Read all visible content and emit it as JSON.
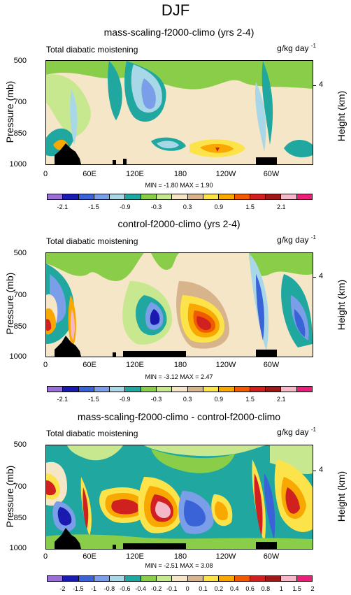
{
  "figure": {
    "title": "DJF"
  },
  "panels": [
    {
      "title": "mass-scaling-f2000-climo (yrs 2-4)",
      "left_text": "Total diabatic moistening",
      "units": "g/kg day",
      "units_exp": "-1",
      "ylabel": "Pressure (mb)",
      "y2label": "Height (km)",
      "yticks": [
        "500",
        "700",
        "850",
        "1000"
      ],
      "y2tick": "4",
      "xticks": [
        "0",
        "60E",
        "120E",
        "180",
        "120W",
        "60W"
      ],
      "minmax": "MIN = -1.80  MAX =  1.90",
      "cb_labels": [
        "-2.1",
        "-1.5",
        "-0.9",
        "-0.3",
        "0.3",
        "0.9",
        "1.5",
        "2.1"
      ]
    },
    {
      "title": "control-f2000-climo (yrs 2-4)",
      "left_text": "Total diabatic moistening",
      "units": "g/kg day",
      "units_exp": "-1",
      "ylabel": "Pressure (mb)",
      "y2label": "Height (km)",
      "yticks": [
        "500",
        "700",
        "850",
        "1000"
      ],
      "y2tick": "4",
      "xticks": [
        "0",
        "60E",
        "120E",
        "180",
        "120W",
        "60W"
      ],
      "minmax": "MIN = -3.12  MAX =  2.47",
      "cb_labels": [
        "-2.1",
        "-1.5",
        "-0.9",
        "-0.3",
        "0.3",
        "0.9",
        "1.5",
        "2.1"
      ]
    },
    {
      "title": "mass-scaling-f2000-climo - control-f2000-climo",
      "left_text": "Total diabatic moistening",
      "units": "g/kg day",
      "units_exp": "-1",
      "ylabel": "Pressure (mb)",
      "y2label": "Height (km)",
      "yticks": [
        "500",
        "700",
        "850",
        "1000"
      ],
      "y2tick": "4",
      "xticks": [
        "0",
        "60E",
        "120E",
        "180",
        "120W",
        "60W"
      ],
      "minmax": "MIN = -2.51  MAX =  3.08",
      "cb_labels": [
        "-2",
        "-1.5",
        "-1",
        "-0.8",
        "-0.6",
        "-0.4",
        "-0.2",
        "-0.1",
        "0",
        "0.1",
        "0.2",
        "0.4",
        "0.6",
        "0.8",
        "1",
        "1.5",
        "2"
      ]
    }
  ],
  "palette": [
    "#9a6fd8",
    "#1a1ab0",
    "#3a63d8",
    "#7a9ee8",
    "#a8d8e8",
    "#20a8a0",
    "#8acd48",
    "#c8e890",
    "#f5e6c8",
    "#d8b48c",
    "#fde34a",
    "#f8a800",
    "#f05a00",
    "#d02020",
    "#a01818",
    "#f4b8c8",
    "#e8207a"
  ],
  "chart_data": [
    {
      "type": "heatmap",
      "title": "mass-scaling-f2000-climo (yrs 2-4)",
      "xlabel": "",
      "ylabel": "Pressure (mb)",
      "x_ticks": [
        "0",
        "60E",
        "120E",
        "180",
        "120W",
        "60W"
      ],
      "y_ticks": [
        500,
        700,
        850,
        1000
      ],
      "min": -1.8,
      "max": 1.9,
      "levels": [
        -2.1,
        -1.8,
        -1.5,
        -1.2,
        -0.9,
        -0.6,
        -0.3,
        0,
        0.3,
        0.6,
        0.9,
        1.2,
        1.5,
        1.8,
        2.1
      ],
      "features": [
        {
          "lon": 150,
          "p": 650,
          "value": -1.2
        },
        {
          "lon": 120,
          "p": 640,
          "value": -0.6
        },
        {
          "lon": 205,
          "p": 960,
          "value": 1.2
        },
        {
          "lon": 290,
          "p": 620,
          "value": -1.0
        },
        {
          "lon": 30,
          "p": 900,
          "value": 0.9
        }
      ]
    },
    {
      "type": "heatmap",
      "title": "control-f2000-climo (yrs 2-4)",
      "xlabel": "",
      "ylabel": "Pressure (mb)",
      "x_ticks": [
        "0",
        "60E",
        "120E",
        "180",
        "120W",
        "60W"
      ],
      "y_ticks": [
        500,
        700,
        850,
        1000
      ],
      "min": -3.12,
      "max": 2.47,
      "levels": [
        -2.1,
        -1.8,
        -1.5,
        -1.2,
        -0.9,
        -0.6,
        -0.3,
        0,
        0.3,
        0.6,
        0.9,
        1.2,
        1.5,
        1.8,
        2.1
      ],
      "features": [
        {
          "lon": 155,
          "p": 850,
          "value": -1.8
        },
        {
          "lon": 205,
          "p": 860,
          "value": 2.1
        },
        {
          "lon": 15,
          "p": 870,
          "value": 1.2
        },
        {
          "lon": 25,
          "p": 700,
          "value": -0.9
        },
        {
          "lon": 290,
          "p": 700,
          "value": -1.5
        }
      ]
    },
    {
      "type": "heatmap",
      "title": "mass-scaling-f2000-climo - control-f2000-climo",
      "xlabel": "",
      "ylabel": "Pressure (mb)",
      "x_ticks": [
        "0",
        "60E",
        "120E",
        "180",
        "120W",
        "60W"
      ],
      "y_ticks": [
        500,
        700,
        850,
        1000
      ],
      "min": -2.51,
      "max": 3.08,
      "levels": [
        -2,
        -1.5,
        -1,
        -0.8,
        -0.6,
        -0.4,
        -0.2,
        -0.1,
        0,
        0.1,
        0.2,
        0.4,
        0.6,
        0.8,
        1,
        1.5,
        2
      ],
      "features": [
        {
          "lon": 160,
          "p": 840,
          "value": 2.5
        },
        {
          "lon": 110,
          "p": 850,
          "value": 1.2
        },
        {
          "lon": 205,
          "p": 860,
          "value": -1.0
        },
        {
          "lon": 20,
          "p": 700,
          "value": 1.5
        },
        {
          "lon": 330,
          "p": 850,
          "value": 1.5
        }
      ]
    }
  ]
}
